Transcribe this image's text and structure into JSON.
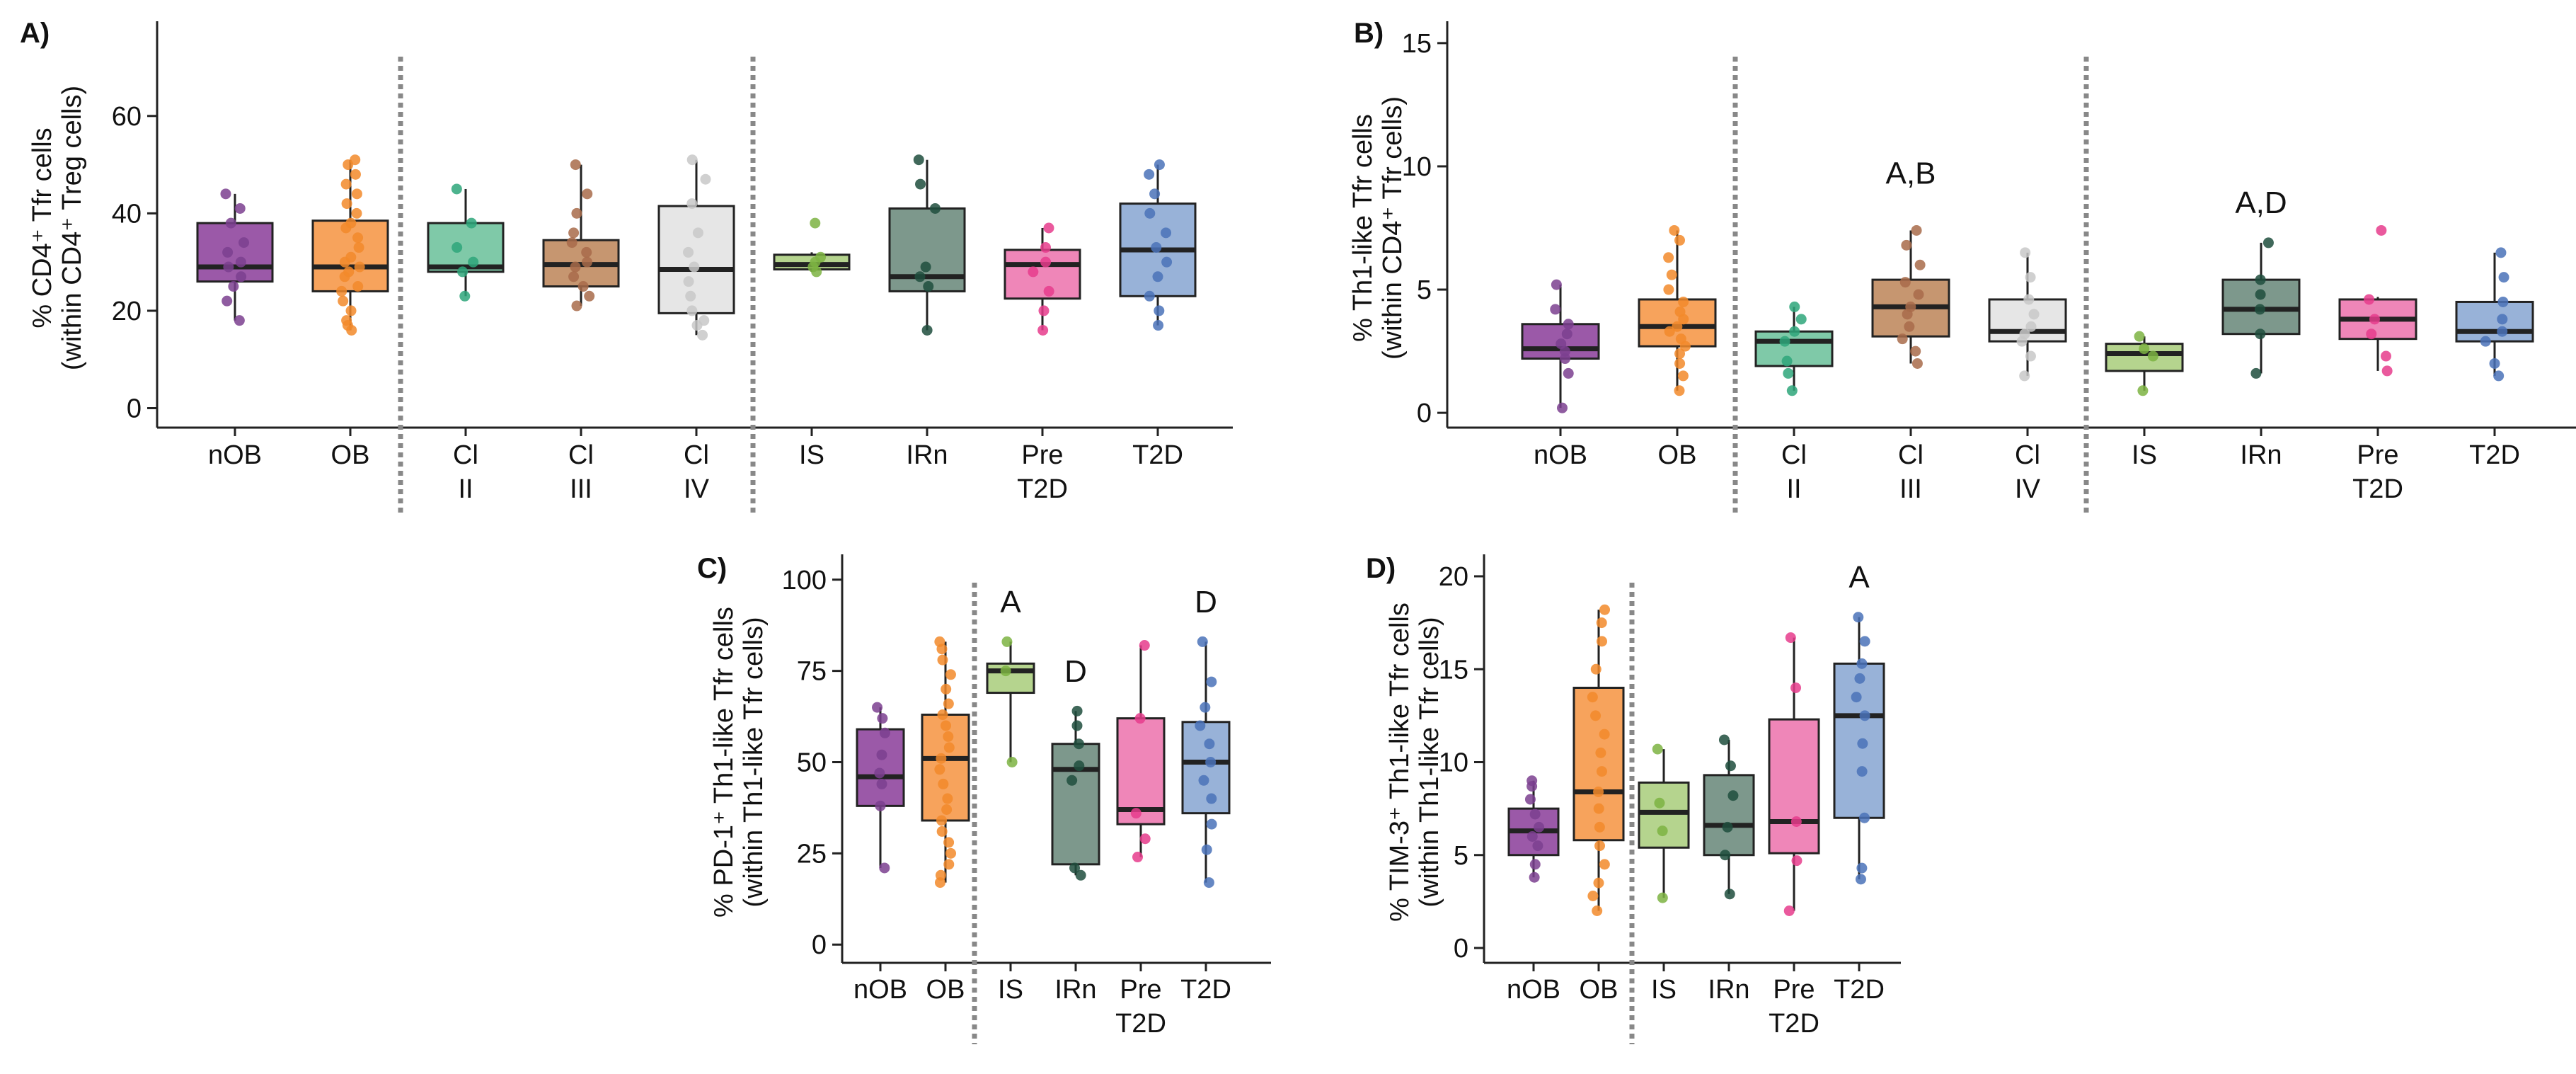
{
  "figure": {
    "colors": {
      "nOB": "#9b59a8",
      "OB": "#f7a35c",
      "ClII": "#7fc9a8",
      "ClIII": "#c69670",
      "ClIV": "#e6e6e6",
      "IS": "#b5d48e",
      "IRn": "#7d988c",
      "Pre T2D": "#ef86b8",
      "T2D": "#98b2d8",
      "dot_nOB": "#7b3f8f",
      "dot_OB": "#f28a2a",
      "dot_ClII": "#2ea67a",
      "dot_ClIII": "#a86b4a",
      "dot_ClIV": "#c8c8c8",
      "dot_IS": "#7cb342",
      "dot_IRn": "#1f4d3d",
      "dot_Pre T2D": "#e63c8c",
      "dot_T2D": "#4a72b8"
    }
  },
  "chart_data": [
    {
      "panel": "A)",
      "type": "box",
      "ylabel_line1": "% CD4⁺ Tfr cells",
      "ylabel_line2": "(within CD4⁺ Treg cells)",
      "ylim": [
        -4,
        78
      ],
      "yticks": [
        0,
        20,
        40,
        60
      ],
      "categories": [
        {
          "key": "nOB",
          "label": [
            "nOB"
          ],
          "stats": {
            "q1": 26,
            "median": 29,
            "q3": 38,
            "whisker_low": 18,
            "whisker_high": 44
          },
          "points": [
            18,
            22,
            25,
            27,
            29,
            30,
            32,
            34,
            38,
            41,
            44
          ]
        },
        {
          "key": "OB",
          "label": [
            "OB"
          ],
          "stats": {
            "q1": 24,
            "median": 29,
            "q3": 38.5,
            "whisker_low": 16,
            "whisker_high": 51
          },
          "points": [
            16,
            17,
            18,
            20,
            22,
            24,
            25,
            27,
            28,
            29,
            30,
            31,
            33,
            35,
            37,
            38,
            40,
            42,
            44,
            46,
            48,
            50,
            51
          ]
        },
        {
          "key": "ClII",
          "label": [
            "Cl",
            "II"
          ],
          "stats": {
            "q1": 28,
            "median": 29,
            "q3": 38,
            "whisker_low": 23,
            "whisker_high": 45
          },
          "points": [
            23,
            28,
            30,
            33,
            38,
            45
          ]
        },
        {
          "key": "ClIII",
          "label": [
            "Cl",
            "III"
          ],
          "stats": {
            "q1": 25,
            "median": 29.5,
            "q3": 34.5,
            "whisker_low": 21,
            "whisker_high": 50
          },
          "points": [
            21,
            23,
            25,
            27,
            29,
            30,
            32,
            34,
            36,
            40,
            44,
            50
          ]
        },
        {
          "key": "ClIV",
          "label": [
            "Cl",
            "IV"
          ],
          "stats": {
            "q1": 19.5,
            "median": 28.5,
            "q3": 41.5,
            "whisker_low": 15,
            "whisker_high": 51
          },
          "points": [
            15,
            17,
            18,
            20,
            23,
            26,
            29,
            32,
            36,
            42,
            47,
            51
          ]
        },
        {
          "key": "IS",
          "label": [
            "IS"
          ],
          "stats": {
            "q1": 28.5,
            "median": 29.5,
            "q3": 31.5,
            "whisker_low": 28,
            "whisker_high": 32
          },
          "points": [
            28,
            29,
            30,
            31,
            38
          ]
        },
        {
          "key": "IRn",
          "label": [
            "IRn"
          ],
          "stats": {
            "q1": 24,
            "median": 27,
            "q3": 41,
            "whisker_low": 16,
            "whisker_high": 51
          },
          "points": [
            16,
            25,
            27,
            29,
            41,
            46,
            51
          ]
        },
        {
          "key": "Pre T2D",
          "label": [
            "Pre",
            "T2D"
          ],
          "stats": {
            "q1": 22.5,
            "median": 29.5,
            "q3": 32.5,
            "whisker_low": 16,
            "whisker_high": 37
          },
          "points": [
            16,
            20,
            24,
            28,
            30,
            33,
            37
          ]
        },
        {
          "key": "T2D",
          "label": [
            "T2D"
          ],
          "stats": {
            "q1": 23,
            "median": 32.5,
            "q3": 42,
            "whisker_low": 17,
            "whisker_high": 50
          },
          "points": [
            17,
            20,
            23,
            27,
            30,
            33,
            36,
            40,
            44,
            48,
            50
          ]
        }
      ],
      "annotations": []
    },
    {
      "panel": "B)",
      "type": "box",
      "ylabel_line1": "% Th1-like Tfr cells",
      "ylabel_line2": "(within CD4⁺ Tfr cells)",
      "ylim": [
        -0.6,
        15.6
      ],
      "yticks": [
        0,
        5,
        10,
        15
      ],
      "categories": [
        {
          "key": "nOB",
          "label": [
            "nOB"
          ],
          "stats": {
            "q1": 2.2,
            "median": 2.6,
            "q3": 3.6,
            "whisker_low": 0.2,
            "whisker_high": 5.2
          },
          "points": [
            0.2,
            1.6,
            2.2,
            2.5,
            2.8,
            3.2,
            3.6,
            4.2,
            5.2
          ]
        },
        {
          "key": "OB",
          "label": [
            "OB"
          ],
          "stats": {
            "q1": 2.7,
            "median": 3.5,
            "q3": 4.6,
            "whisker_low": 0.9,
            "whisker_high": 7.4
          },
          "points": [
            0.9,
            1.5,
            2.0,
            2.4,
            2.7,
            3.0,
            3.3,
            3.5,
            3.8,
            4.1,
            4.5,
            5.0,
            5.6,
            6.3,
            7.0,
            7.4
          ]
        },
        {
          "key": "ClII",
          "label": [
            "Cl",
            "II"
          ],
          "stats": {
            "q1": 1.9,
            "median": 2.9,
            "q3": 3.3,
            "whisker_low": 0.9,
            "whisker_high": 4.3
          },
          "points": [
            0.9,
            1.6,
            2.1,
            2.9,
            3.3,
            3.8,
            4.3
          ]
        },
        {
          "key": "ClIII",
          "label": [
            "Cl",
            "III"
          ],
          "stats": {
            "q1": 3.1,
            "median": 4.3,
            "q3": 5.4,
            "whisker_low": 2.0,
            "whisker_high": 7.4
          },
          "points": [
            2.0,
            2.5,
            3.0,
            3.5,
            4.0,
            4.3,
            4.8,
            5.3,
            6.0,
            6.8,
            7.4
          ]
        },
        {
          "key": "ClIV",
          "label": [
            "Cl",
            "IV"
          ],
          "stats": {
            "q1": 2.9,
            "median": 3.3,
            "q3": 4.6,
            "whisker_low": 1.5,
            "whisker_high": 6.5
          },
          "points": [
            1.5,
            2.3,
            2.9,
            3.2,
            3.5,
            4.0,
            4.6,
            5.5,
            6.5
          ]
        },
        {
          "key": "IS",
          "label": [
            "IS"
          ],
          "stats": {
            "q1": 1.7,
            "median": 2.4,
            "q3": 2.8,
            "whisker_low": 0.9,
            "whisker_high": 3.1
          },
          "points": [
            0.9,
            2.3,
            2.6,
            3.1
          ]
        },
        {
          "key": "IRn",
          "label": [
            "IRn"
          ],
          "stats": {
            "q1": 3.2,
            "median": 4.2,
            "q3": 5.4,
            "whisker_low": 1.6,
            "whisker_high": 6.9
          },
          "points": [
            1.6,
            3.2,
            4.2,
            4.8,
            5.4,
            6.9
          ]
        },
        {
          "key": "Pre T2D",
          "label": [
            "Pre",
            "T2D"
          ],
          "stats": {
            "q1": 3.0,
            "median": 3.8,
            "q3": 4.6,
            "whisker_low": 1.7,
            "whisker_high": 4.7
          },
          "points": [
            1.7,
            2.3,
            3.2,
            3.8,
            4.6,
            7.4
          ]
        },
        {
          "key": "T2D",
          "label": [
            "T2D"
          ],
          "stats": {
            "q1": 2.9,
            "median": 3.3,
            "q3": 4.5,
            "whisker_low": 1.5,
            "whisker_high": 6.5
          },
          "points": [
            1.5,
            2.0,
            2.9,
            3.3,
            3.8,
            4.5,
            5.5,
            6.5
          ]
        }
      ],
      "annotations": [
        {
          "category": "ClIII",
          "text": "A,B",
          "y": 9.3
        },
        {
          "category": "IRn",
          "text": "A,D",
          "y": 8.1
        }
      ]
    },
    {
      "panel": "C)",
      "type": "box",
      "ylabel_line1": "% PD-1⁺ Th1-like Tfr cells",
      "ylabel_line2": "(within Th1-like Tfr cells)",
      "ylim": [
        -5,
        105
      ],
      "yticks": [
        0,
        25,
        50,
        75,
        100
      ],
      "categories": [
        {
          "key": "nOB",
          "label": [
            "nOB"
          ],
          "stats": {
            "q1": 38,
            "median": 46,
            "q3": 59,
            "whisker_low": 21,
            "whisker_high": 65
          },
          "points": [
            21,
            38,
            44,
            47,
            52,
            58,
            62,
            65
          ]
        },
        {
          "key": "OB",
          "label": [
            "OB"
          ],
          "stats": {
            "q1": 34,
            "median": 51,
            "q3": 63,
            "whisker_low": 17,
            "whisker_high": 83
          },
          "points": [
            17,
            19,
            22,
            25,
            28,
            31,
            34,
            37,
            40,
            44,
            48,
            51,
            54,
            57,
            60,
            63,
            66,
            70,
            74,
            78,
            81,
            83
          ]
        },
        {
          "key": "IS",
          "label": [
            "IS"
          ],
          "stats": {
            "q1": 69,
            "median": 75,
            "q3": 77,
            "whisker_low": 50,
            "whisker_high": 83
          },
          "points": [
            50,
            75,
            83
          ]
        },
        {
          "key": "IRn",
          "label": [
            "IRn"
          ],
          "stats": {
            "q1": 22,
            "median": 48,
            "q3": 55,
            "whisker_low": 19,
            "whisker_high": 64
          },
          "points": [
            19,
            21,
            45,
            49,
            55,
            60,
            64
          ]
        },
        {
          "key": "Pre T2D",
          "label": [
            "Pre",
            "T2D"
          ],
          "stats": {
            "q1": 33,
            "median": 37,
            "q3": 62,
            "whisker_low": 24,
            "whisker_high": 82
          },
          "points": [
            24,
            29,
            36,
            62,
            82
          ]
        },
        {
          "key": "T2D",
          "label": [
            "T2D"
          ],
          "stats": {
            "q1": 36,
            "median": 50,
            "q3": 61,
            "whisker_low": 17,
            "whisker_high": 83
          },
          "points": [
            17,
            26,
            33,
            40,
            45,
            50,
            55,
            60,
            65,
            72,
            83
          ]
        }
      ],
      "annotations": [
        {
          "category": "IS",
          "text": "A",
          "y": 91
        },
        {
          "category": "IRn",
          "text": "D",
          "y": 72
        },
        {
          "category": "T2D",
          "text": "D",
          "y": 91
        }
      ]
    },
    {
      "panel": "D)",
      "type": "box",
      "ylabel_line1": "% TIM-3⁺ Th1-like Tfr cells",
      "ylabel_line2": "(within Th1-like Tfr cells)",
      "ylim": [
        -0.8,
        20.8
      ],
      "yticks": [
        0,
        5,
        10,
        15,
        20
      ],
      "categories": [
        {
          "key": "nOB",
          "label": [
            "nOB"
          ],
          "stats": {
            "q1": 5.0,
            "median": 6.3,
            "q3": 7.5,
            "whisker_low": 3.8,
            "whisker_high": 9.0
          },
          "points": [
            3.8,
            4.5,
            5.5,
            6.0,
            6.5,
            7.2,
            8.0,
            8.7,
            9.0
          ]
        },
        {
          "key": "OB",
          "label": [
            "OB"
          ],
          "stats": {
            "q1": 5.8,
            "median": 8.4,
            "q3": 14.0,
            "whisker_low": 2.0,
            "whisker_high": 18.2
          },
          "points": [
            2.0,
            2.8,
            3.5,
            4.5,
            5.5,
            6.5,
            7.5,
            8.4,
            9.5,
            10.5,
            11.5,
            12.5,
            13.5,
            15.0,
            16.5,
            17.5,
            18.2
          ]
        },
        {
          "key": "IS",
          "label": [
            "IS"
          ],
          "stats": {
            "q1": 5.4,
            "median": 7.3,
            "q3": 8.9,
            "whisker_low": 2.7,
            "whisker_high": 10.7
          },
          "points": [
            2.7,
            6.3,
            7.8,
            10.7
          ]
        },
        {
          "key": "IRn",
          "label": [
            "IRn"
          ],
          "stats": {
            "q1": 5.0,
            "median": 6.6,
            "q3": 9.3,
            "whisker_low": 2.9,
            "whisker_high": 11.2
          },
          "points": [
            2.9,
            5.0,
            6.5,
            8.2,
            9.8,
            11.2
          ]
        },
        {
          "key": "Pre T2D",
          "label": [
            "Pre",
            "T2D"
          ],
          "stats": {
            "q1": 5.1,
            "median": 6.8,
            "q3": 12.3,
            "whisker_low": 2.0,
            "whisker_high": 16.7
          },
          "points": [
            2.0,
            4.7,
            6.8,
            14.0,
            16.7
          ]
        },
        {
          "key": "T2D",
          "label": [
            "T2D"
          ],
          "stats": {
            "q1": 7.0,
            "median": 12.5,
            "q3": 15.3,
            "whisker_low": 3.7,
            "whisker_high": 17.8
          },
          "points": [
            3.7,
            4.3,
            7.0,
            9.5,
            11.0,
            12.5,
            13.5,
            14.5,
            15.3,
            16.5,
            17.8
          ]
        }
      ],
      "annotations": [
        {
          "category": "T2D",
          "text": "A",
          "y": 19.4
        }
      ]
    }
  ]
}
